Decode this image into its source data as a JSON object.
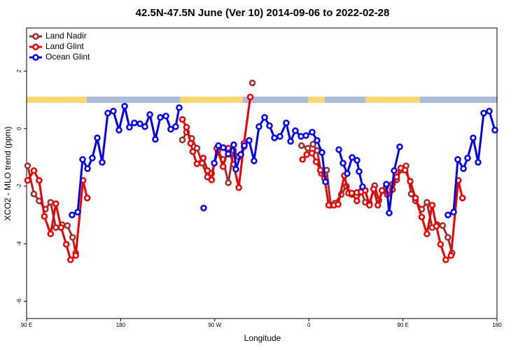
{
  "chart_data": {
    "type": "line",
    "title": "42.5N-47.5N June (Ver 10)   2014-09-06 to 2022-02-28",
    "x_label": "Longitude",
    "y_label": "XCO2 - MLO trend (ppm)",
    "xlim": [
      90,
      540
    ],
    "ylim": [
      -6.6,
      3.5
    ],
    "xticks": [
      {
        "value": 90,
        "label": "90 E"
      },
      {
        "value": 180,
        "label": "180"
      },
      {
        "value": 270,
        "label": "90 W"
      },
      {
        "value": 360,
        "label": "0"
      },
      {
        "value": 450,
        "label": "90 E"
      },
      {
        "value": 540,
        "label": "180"
      }
    ],
    "yticks": [
      -6,
      -4,
      -2,
      0,
      2
    ],
    "legend": "top-left",
    "series": [
      {
        "name": "Land Nadir",
        "color": "#a52a2a",
        "x": [
          91,
          97,
          102,
          108,
          113,
          118,
          124,
          129,
          134,
          137,
          null,
          239,
          243,
          248,
          253,
          258,
          263,
          267,
          273,
          278,
          283,
          288,
          293,
          298,
          null,
          306,
          null,
          353,
          359,
          364,
          368,
          372,
          377,
          381,
          385,
          391,
          396,
          401,
          406,
          410,
          414,
          418,
          423,
          427,
          431,
          434,
          440,
          444,
          448,
          453,
          458,
          462,
          468,
          473,
          478,
          483,
          488,
          493,
          497
        ],
        "values": [
          -1.29,
          -2.27,
          -2.51,
          -2.8,
          -2.56,
          -3.44,
          -3.34,
          -3.37,
          -3.78,
          -4.32,
          null,
          -0.39,
          -0.12,
          -0.34,
          -0.68,
          -1.2,
          -1.68,
          -1.56,
          -0.78,
          -1.07,
          -1.88,
          -0.76,
          -0.98,
          -0.63,
          null,
          1.59,
          null,
          -0.59,
          -0.68,
          -0.54,
          -0.76,
          -1.56,
          -1.44,
          -2.66,
          -2.59,
          -2.29,
          -2.0,
          -2.29,
          -2.22,
          -2.17,
          -2.56,
          -2.59,
          -1.98,
          -2.49,
          -2.15,
          -2.0,
          -1.93,
          -1.78,
          -1.44,
          -1.29,
          -2.27,
          -2.51,
          -2.8,
          -2.56,
          -3.44,
          -3.34,
          -3.37,
          -3.78,
          -4.32
        ]
      },
      {
        "name": "Land Glint",
        "color": "#ee0000",
        "x": [
          91,
          97,
          102,
          107,
          113,
          118,
          123,
          128,
          132,
          137,
          144,
          148,
          null,
          239,
          243,
          247,
          249,
          253,
          259,
          263,
          267,
          272,
          278,
          283,
          288,
          293,
          298,
          304,
          null,
          354,
          358,
          363,
          367,
          371,
          375,
          379,
          384,
          388,
          394,
          398,
          401,
          406,
          410,
          414,
          418,
          422,
          426,
          430,
          435,
          440,
          444,
          448,
          452,
          457,
          462,
          468,
          473,
          478,
          482,
          486,
          491,
          496,
          503,
          507
        ],
        "values": [
          -1.8,
          -1.46,
          -1.8,
          -3.05,
          -3.66,
          -2.61,
          -3.44,
          -4.02,
          -4.56,
          -4.41,
          -1.8,
          -2.41,
          null,
          0.32,
          0.05,
          -0.51,
          -0.8,
          -1.22,
          -1.02,
          -1.46,
          -1.78,
          -0.68,
          -1.32,
          -0.68,
          -1.24,
          -2.05,
          -0.51,
          1.1,
          null,
          -1.07,
          -0.9,
          -0.85,
          -1.15,
          -1.44,
          -1.73,
          -2.66,
          -2.66,
          -2.63,
          -1.63,
          -2.24,
          -2.24,
          -2.51,
          -2.2,
          -2.15,
          -2.66,
          -2.1,
          -2.66,
          -2.15,
          -2.29,
          -2.12,
          -1.68,
          -1.37,
          -1.44,
          -1.83,
          -2.41,
          -3.07,
          -3.66,
          -2.66,
          -3.39,
          -4.02,
          -4.56,
          -4.41,
          -1.8,
          -2.41
        ]
      },
      {
        "name": "Ocean Glint",
        "color": "#0000ee",
        "x": [
          133.5,
          138.9,
          143.6,
          148.3,
          152.9,
          157.6,
          162.3,
          167.7,
          173,
          178.4,
          183.8,
          188.4,
          193.1,
          198.5,
          203.2,
          207.9,
          213.2,
          217.9,
          223.3,
          227.9,
          232.6,
          236,
          null,
          259.4,
          null,
          269.5,
          273.5,
          278.2,
          282.9,
          288.2,
          290.2,
          294.9,
          298.3,
          302.9,
          307.6,
          312.3,
          317.7,
          322.4,
          327.1,
          332.4,
          338.4,
          342.5,
          347.1,
          352.5,
          357.2,
          363.2,
          367.9,
          372.6,
          375.9,
          null,
          388.7,
          392.7,
          396.7,
          401.4,
          406.1,
          408.1,
          411.4,
          null,
          434.2,
          436.9,
          441.6,
          446.9,
          null,
          493.1,
          498.5,
          502.5,
          507.9,
          511.9,
          517.2,
          521.9,
          527.3,
          532.6,
          538
        ],
        "values": [
          -3.0,
          -2.9,
          -1.07,
          -1.39,
          -1.02,
          -0.32,
          -1.17,
          0.54,
          0.61,
          -0.05,
          0.78,
          0.05,
          0.2,
          0.17,
          0.07,
          0.49,
          -0.37,
          0.39,
          0.44,
          -0.02,
          0.07,
          0.73,
          null,
          -2.76,
          null,
          -1.2,
          -0.59,
          -0.66,
          -0.88,
          -0.56,
          -1.41,
          -0.9,
          -0.59,
          -0.41,
          -1.12,
          0.07,
          0.39,
          0.1,
          -0.32,
          -0.27,
          0.2,
          -0.44,
          -0.07,
          -0.27,
          -0.24,
          -0.12,
          -0.41,
          -0.83,
          -1.85,
          null,
          -0.73,
          -1.2,
          -1.56,
          -1.0,
          -1.1,
          -1.49,
          -2.02,
          null,
          -1.93,
          -2.93,
          -1.46,
          -0.63,
          null,
          -3.0,
          -2.9,
          -1.07,
          -1.39,
          -1.02,
          -0.32,
          -1.17,
          0.54,
          0.61,
          -0.05
        ]
      }
    ]
  }
}
